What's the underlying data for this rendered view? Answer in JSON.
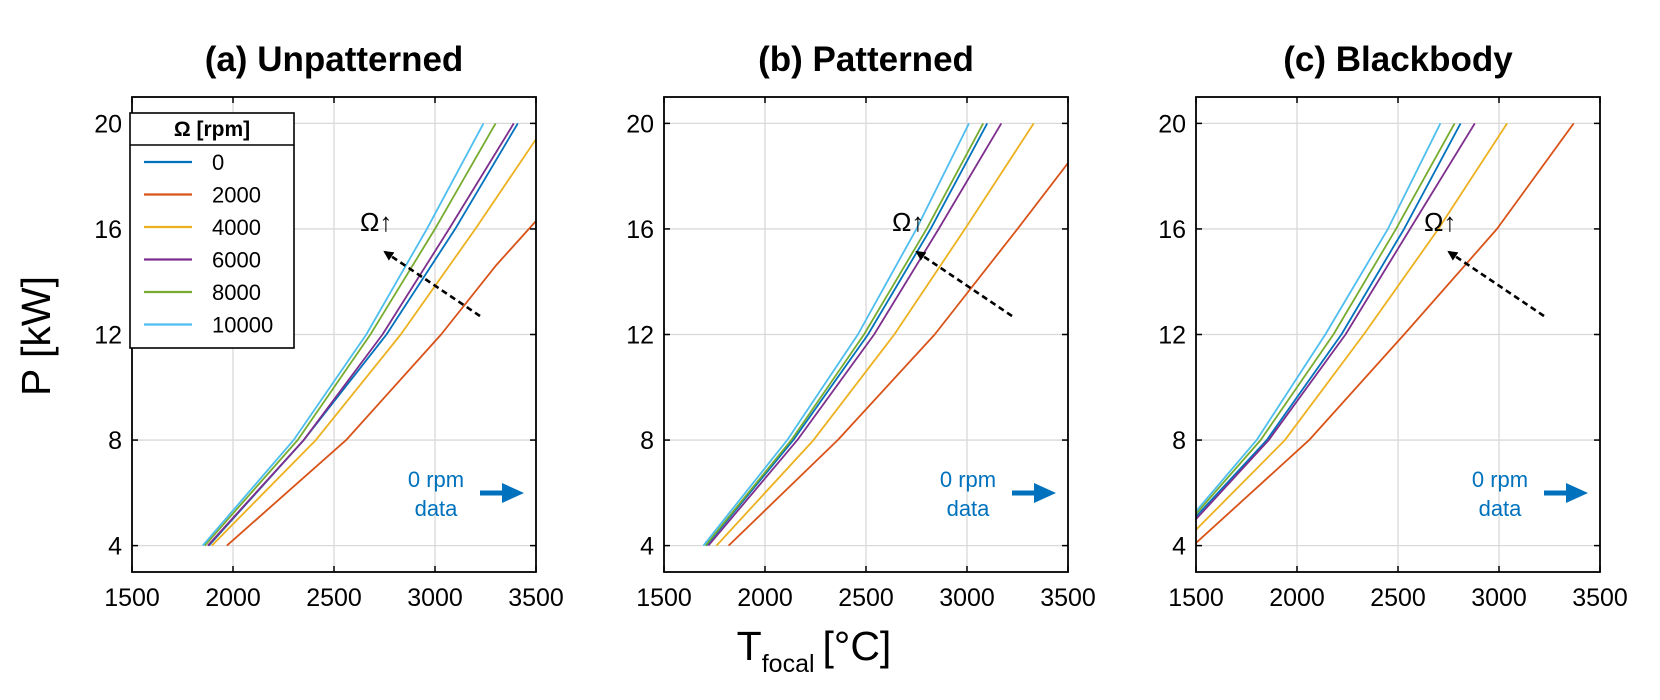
{
  "figure": {
    "ylabel": "P [kW]",
    "xlabel_main": "T",
    "xlabel_sub": "focal",
    "xlabel_unit": "[°C]"
  },
  "legend": {
    "title": "Ω [rpm]",
    "entries": [
      "0",
      "2000",
      "4000",
      "6000",
      "8000",
      "10000"
    ],
    "location": "upper-left of panel (a)"
  },
  "chart_data": [
    {
      "type": "line",
      "title": "(a) Unpatterned",
      "xlim": [
        1500,
        3500
      ],
      "ylim": [
        3,
        21
      ],
      "xticks": [
        "1500",
        "2000",
        "2500",
        "3000",
        "3500"
      ],
      "yticks": [
        "4",
        "8",
        "12",
        "16",
        "20"
      ],
      "grid": true,
      "annotation": "Ω↑",
      "data_note": [
        "0 rpm",
        "data"
      ],
      "series": [
        {
          "name": "0",
          "color": "#0072bd",
          "x": [
            1880,
            2350,
            2760,
            3100,
            3410
          ],
          "y": [
            4,
            8,
            12,
            16,
            20
          ]
        },
        {
          "name": "2000",
          "color": "#d95319",
          "x": [
            1970,
            2560,
            3030,
            3300,
            3500
          ],
          "y": [
            4,
            8,
            12,
            14.6,
            16.3
          ]
        },
        {
          "name": "4000",
          "color": "#edb120",
          "x": [
            1895,
            2410,
            2830,
            3200,
            3500
          ],
          "y": [
            4,
            8,
            12,
            16,
            19.4
          ]
        },
        {
          "name": "6000",
          "color": "#7e2f8e",
          "x": [
            1875,
            2350,
            2740,
            3070,
            3390
          ],
          "y": [
            4,
            8,
            12,
            16,
            20
          ]
        },
        {
          "name": "8000",
          "color": "#77ac30",
          "x": [
            1860,
            2320,
            2680,
            3000,
            3300
          ],
          "y": [
            4,
            8,
            12,
            16,
            20
          ]
        },
        {
          "name": "10000",
          "color": "#4dbeee",
          "x": [
            1850,
            2300,
            2660,
            2960,
            3240
          ],
          "y": [
            4,
            8,
            12,
            16,
            20
          ]
        }
      ]
    },
    {
      "type": "line",
      "title": "(b) Patterned",
      "xlim": [
        1500,
        3500
      ],
      "ylim": [
        3,
        21
      ],
      "xticks": [
        "1500",
        "2000",
        "2500",
        "3000",
        "3500"
      ],
      "yticks": [
        "4",
        "8",
        "12",
        "16",
        "20"
      ],
      "grid": true,
      "annotation": "Ω↑",
      "data_note": [
        "0 rpm",
        "data"
      ],
      "series": [
        {
          "name": "0",
          "color": "#0072bd",
          "x": [
            1710,
            2140,
            2510,
            2820,
            3100
          ],
          "y": [
            4,
            8,
            12,
            16,
            20
          ]
        },
        {
          "name": "2000",
          "color": "#d95319",
          "x": [
            1820,
            2360,
            2840,
            3250,
            3500
          ],
          "y": [
            4,
            8,
            12,
            16,
            18.5
          ]
        },
        {
          "name": "4000",
          "color": "#edb120",
          "x": [
            1760,
            2240,
            2640,
            2990,
            3330
          ],
          "y": [
            4,
            8,
            12,
            16,
            20
          ]
        },
        {
          "name": "6000",
          "color": "#7e2f8e",
          "x": [
            1720,
            2160,
            2540,
            2860,
            3170
          ],
          "y": [
            4,
            8,
            12,
            16,
            20
          ]
        },
        {
          "name": "8000",
          "color": "#77ac30",
          "x": [
            1705,
            2130,
            2490,
            2800,
            3080
          ],
          "y": [
            4,
            8,
            12,
            16,
            20
          ]
        },
        {
          "name": "10000",
          "color": "#4dbeee",
          "x": [
            1695,
            2110,
            2460,
            2750,
            3010
          ],
          "y": [
            4,
            8,
            12,
            16,
            20
          ]
        }
      ]
    },
    {
      "type": "line",
      "title": "(c) Blackbody",
      "xlim": [
        1500,
        3500
      ],
      "ylim": [
        3,
        21
      ],
      "xticks": [
        "1500",
        "2000",
        "2500",
        "3000",
        "3500"
      ],
      "yticks": [
        "4",
        "8",
        "12",
        "16",
        "20"
      ],
      "grid": true,
      "annotation": "Ω↑",
      "data_note": [
        "0 rpm",
        "data"
      ],
      "series": [
        {
          "name": "0",
          "color": "#0072bd",
          "x": [
            1500,
            1850,
            2220,
            2530,
            2810
          ],
          "y": [
            5.1,
            8,
            12,
            16,
            20
          ]
        },
        {
          "name": "2000",
          "color": "#d95319",
          "x": [
            1500,
            2060,
            2530,
            2990,
            3370
          ],
          "y": [
            4.1,
            8,
            12,
            16,
            20
          ]
        },
        {
          "name": "4000",
          "color": "#edb120",
          "x": [
            1500,
            1940,
            2330,
            2700,
            3040
          ],
          "y": [
            4.6,
            8,
            12,
            16,
            20
          ]
        },
        {
          "name": "6000",
          "color": "#7e2f8e",
          "x": [
            1500,
            1860,
            2240,
            2560,
            2880
          ],
          "y": [
            5,
            8,
            12,
            16,
            20
          ]
        },
        {
          "name": "8000",
          "color": "#77ac30",
          "x": [
            1500,
            1820,
            2180,
            2490,
            2780
          ],
          "y": [
            5.2,
            8,
            12,
            16,
            20
          ]
        },
        {
          "name": "10000",
          "color": "#4dbeee",
          "x": [
            1500,
            1800,
            2140,
            2450,
            2710
          ],
          "y": [
            5.3,
            8,
            12,
            16,
            20
          ]
        }
      ]
    }
  ]
}
